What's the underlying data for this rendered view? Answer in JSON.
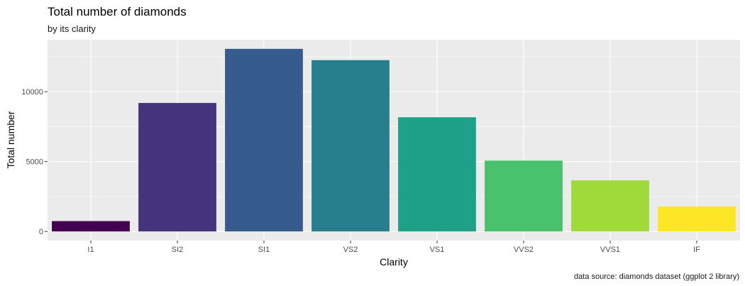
{
  "chart_data": {
    "type": "bar",
    "title": "Total number of diamonds",
    "subtitle": "by its clarity",
    "xlabel": "Clarity",
    "ylabel": "Total number",
    "caption": "data source: diamonds dataset (ggplot 2 library)",
    "categories": [
      "I1",
      "SI2",
      "SI1",
      "VS2",
      "VS1",
      "VVS2",
      "VVS1",
      "IF"
    ],
    "values": [
      741,
      9194,
      13065,
      12258,
      8171,
      5066,
      3655,
      1790
    ],
    "colors": [
      "#440154",
      "#46337E",
      "#365C8D",
      "#277F8E",
      "#1FA187",
      "#4AC16D",
      "#9FDA3A",
      "#FDE725"
    ],
    "yticks": [
      0,
      5000,
      10000
    ],
    "ylim": [
      -653,
      13718
    ],
    "grid": true,
    "legend": "none",
    "panel_background": "#EBEBEB",
    "grid_color": "#FFFFFF"
  }
}
